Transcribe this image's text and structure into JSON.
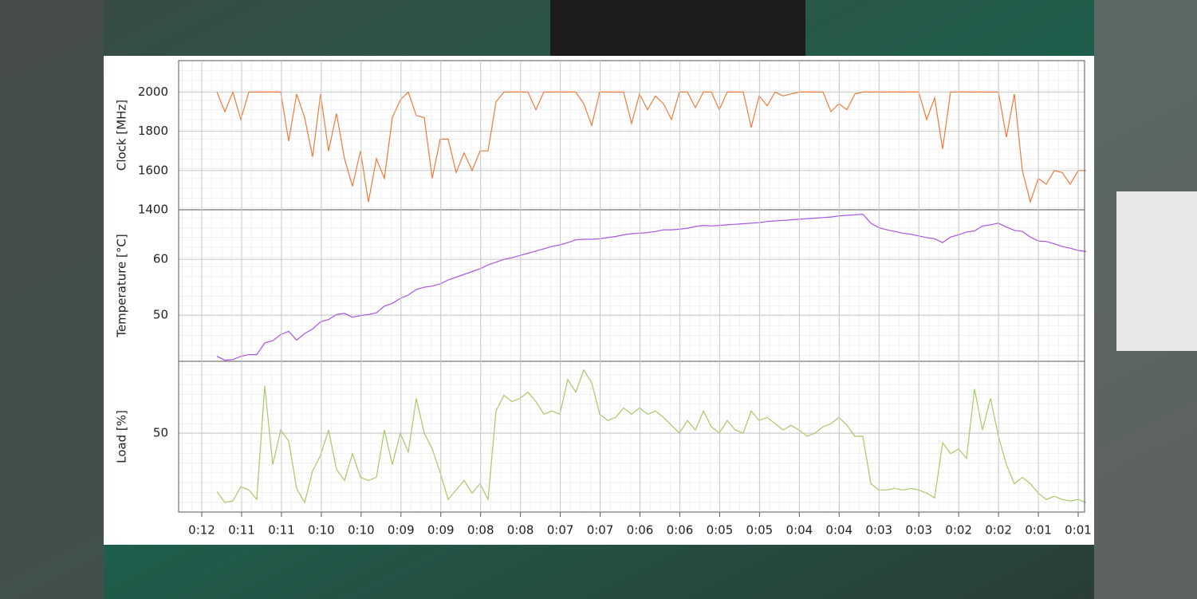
{
  "chart_data": [
    {
      "type": "line",
      "ylabel": "Clock [MHz]",
      "color": "#ee7b3c",
      "grid": true,
      "ylim": [
        1400,
        2160
      ],
      "yticks": [
        1400,
        1600,
        1800,
        2000
      ],
      "values": [
        2000,
        1900,
        2000,
        1860,
        2000,
        2000,
        2000,
        2000,
        2000,
        1750,
        1990,
        1870,
        1670,
        1990,
        1700,
        1890,
        1660,
        1520,
        1700,
        1440,
        1660,
        1560,
        1870,
        1960,
        2000,
        1880,
        1870,
        1560,
        1760,
        1760,
        1590,
        1690,
        1600,
        1700,
        1700,
        1950,
        2000,
        2000,
        2000,
        2000,
        1910,
        2000,
        2000,
        2000,
        2000,
        2000,
        1940,
        1830,
        2000,
        2000,
        2000,
        2000,
        1840,
        1990,
        1910,
        1980,
        1940,
        1860,
        2000,
        2000,
        1920,
        2000,
        2000,
        1910,
        2000,
        2000,
        2000,
        1820,
        1980,
        1930,
        2000,
        1980,
        1990,
        2000,
        2000,
        2000,
        2000,
        1900,
        1940,
        1910,
        1990,
        2000,
        2000,
        2000,
        2000,
        2000,
        2000,
        2000,
        2000,
        1860,
        1970,
        1710,
        2000,
        2000,
        2000,
        2000,
        2000,
        2000,
        2000,
        1770,
        1990,
        1600,
        1440,
        1560,
        1530,
        1600,
        1590,
        1530,
        1600,
        1600
      ]
    },
    {
      "type": "line",
      "ylabel": "Temperature [°C]",
      "color": "#a855e0",
      "grid": true,
      "ylim": [
        41.7,
        68.9
      ],
      "yticks": [
        50,
        60
      ],
      "values": [
        42.6,
        41.9,
        42.0,
        42.6,
        42.9,
        42.9,
        45.0,
        45.4,
        46.5,
        47.1,
        45.5,
        46.7,
        47.5,
        48.8,
        49.2,
        50.1,
        50.3,
        49.6,
        49.9,
        50.1,
        50.4,
        51.6,
        52.1,
        53.0,
        53.6,
        54.6,
        55.0,
        55.2,
        55.6,
        56.3,
        56.8,
        57.3,
        57.8,
        58.3,
        59.0,
        59.5,
        60.0,
        60.3,
        60.7,
        61.1,
        61.5,
        61.9,
        62.3,
        62.6,
        63.0,
        63.5,
        63.6,
        63.6,
        63.7,
        63.9,
        64.1,
        64.4,
        64.6,
        64.7,
        64.8,
        65.0,
        65.3,
        65.3,
        65.4,
        65.6,
        65.9,
        66.1,
        66.0,
        66.1,
        66.2,
        66.3,
        66.4,
        66.5,
        66.6,
        66.8,
        66.9,
        67.0,
        67.1,
        67.2,
        67.3,
        67.4,
        67.5,
        67.6,
        67.8,
        67.9,
        68.0,
        68.1,
        66.5,
        65.7,
        65.3,
        65.0,
        64.7,
        64.5,
        64.2,
        63.9,
        63.7,
        63.0,
        64.0,
        64.4,
        64.9,
        65.1,
        66.0,
        66.2,
        66.5,
        65.8,
        65.2,
        65.0,
        64.0,
        63.3,
        63.2,
        62.8,
        62.3,
        62.0,
        61.6,
        61.4
      ]
    },
    {
      "type": "line",
      "ylabel": "Load [%]",
      "color": "#a8c868",
      "grid": true,
      "ylim": [
        0,
        95.5
      ],
      "yticks": [
        50
      ],
      "values": [
        13,
        6,
        7,
        16,
        14,
        8,
        80,
        30,
        52,
        45,
        15,
        6,
        26,
        36,
        52,
        27,
        20,
        37,
        22,
        20,
        22,
        52,
        30,
        50,
        38,
        72,
        50,
        40,
        25,
        8,
        14,
        20,
        12,
        18,
        8,
        64,
        74,
        70,
        72,
        76,
        70,
        62,
        64,
        62,
        84,
        76,
        90,
        82,
        62,
        58,
        60,
        66,
        62,
        66,
        62,
        64,
        60,
        55,
        50,
        58,
        52,
        64,
        54,
        50,
        58,
        52,
        50,
        64,
        58,
        60,
        56,
        52,
        55,
        52,
        48,
        50,
        54,
        56,
        60,
        55,
        48,
        48,
        18,
        14,
        14,
        15,
        14,
        15,
        14,
        12,
        9,
        44,
        37,
        40,
        34,
        78,
        52,
        72,
        48,
        30,
        18,
        22,
        18,
        12,
        8,
        10,
        8,
        7,
        8,
        6
      ],
      "xtick_labels": [
        "0:12",
        "0:11",
        "0:11",
        "0:10",
        "0:10",
        "0:09",
        "0:09",
        "0:08",
        "0:08",
        "0:07",
        "0:07",
        "0:06",
        "0:06",
        "0:05",
        "0:05",
        "0:04",
        "0:04",
        "0:03",
        "0:03",
        "0:02",
        "0:02",
        "0:01",
        "0:01"
      ]
    }
  ]
}
